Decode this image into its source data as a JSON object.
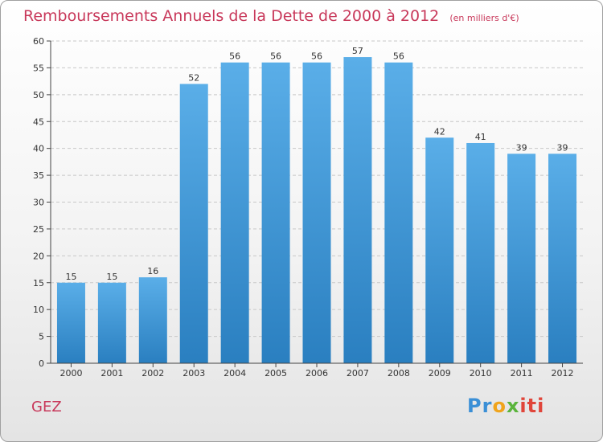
{
  "header": {
    "title": "Remboursements Annuels de la Dette de 2000 à 2012",
    "subtitle": "(en milliers d'€)"
  },
  "footer": {
    "location": "GEZ",
    "logo": [
      "Pr",
      "o",
      "x",
      "iti"
    ]
  },
  "colors": {
    "title": "#c8385a",
    "bar_top": "#5aaee8",
    "bar_bottom": "#2a7fc0",
    "axis": "#444444",
    "grid": "#c8c8c8"
  },
  "chart_data": {
    "type": "bar",
    "title": "Remboursements Annuels de la Dette de 2000 à 2012",
    "subtitle": "(en milliers d'€)",
    "xlabel": "",
    "ylabel": "",
    "categories": [
      "2000",
      "2001",
      "2002",
      "2003",
      "2004",
      "2005",
      "2006",
      "2007",
      "2008",
      "2009",
      "2010",
      "2011",
      "2012"
    ],
    "values": [
      15,
      15,
      16,
      52,
      56,
      56,
      56,
      57,
      56,
      42,
      41,
      39,
      39
    ],
    "ylim": [
      0,
      60
    ],
    "yticks": [
      0,
      5,
      10,
      15,
      20,
      25,
      30,
      35,
      40,
      45,
      50,
      55,
      60
    ],
    "grid": true,
    "data_labels": true
  }
}
